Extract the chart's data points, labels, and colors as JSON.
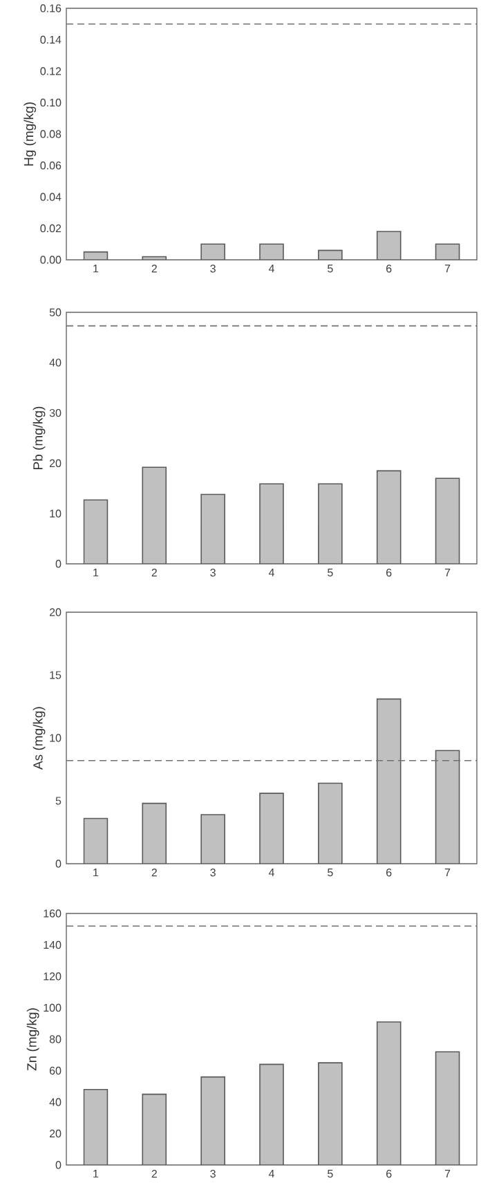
{
  "chart_data": [
    {
      "type": "bar",
      "ylabel": "Hg (mg/kg)",
      "categories": [
        "1",
        "2",
        "3",
        "4",
        "5",
        "6",
        "7"
      ],
      "values": [
        0.005,
        0.002,
        0.01,
        0.01,
        0.006,
        0.018,
        0.01
      ],
      "color": "#c0c0c0",
      "ylim": [
        0,
        0.16
      ],
      "yticks": [
        {
          "value": 0,
          "label": "0.00"
        },
        {
          "value": 0.02,
          "label": "0.02"
        },
        {
          "value": 0.04,
          "label": "0.04"
        },
        {
          "value": 0.06,
          "label": "0.06"
        },
        {
          "value": 0.08,
          "label": "0.08"
        },
        {
          "value": 0.1,
          "label": "0.10"
        },
        {
          "value": 0.12,
          "label": "0.12"
        },
        {
          "value": 0.14,
          "label": "0.14"
        },
        {
          "value": 0.16,
          "label": "0.16"
        }
      ],
      "ref_lines": [
        {
          "axis": "y",
          "value": 0.15,
          "color": "#707070",
          "line_style": "dashed"
        }
      ]
    },
    {
      "type": "bar",
      "ylabel": "Pb (mg/kg)",
      "categories": [
        "1",
        "2",
        "3",
        "4",
        "5",
        "6",
        "7"
      ],
      "values": [
        12.7,
        19.2,
        13.8,
        15.9,
        15.9,
        18.5,
        17.0
      ],
      "color": "#c0c0c0",
      "ylim": [
        0,
        50
      ],
      "yticks": [
        0,
        10,
        20,
        30,
        40,
        50
      ],
      "ref_lines": [
        {
          "axis": "y",
          "value": 47.3,
          "color": "#707070",
          "line_style": "dashed"
        }
      ]
    },
    {
      "type": "bar",
      "ylabel": "As (mg/kg)",
      "categories": [
        "1",
        "2",
        "3",
        "4",
        "5",
        "6",
        "7"
      ],
      "values": [
        3.6,
        4.8,
        3.9,
        5.6,
        6.4,
        13.1,
        9.0
      ],
      "color": "#c0c0c0",
      "ylim": [
        0,
        20
      ],
      "yticks": [
        0,
        5,
        10,
        15,
        20
      ],
      "ref_lines": [
        {
          "axis": "y",
          "value": 8.2,
          "color": "#707070",
          "line_style": "dashed"
        }
      ]
    },
    {
      "type": "bar",
      "ylabel": "Zn (mg/kg)",
      "categories": [
        "1",
        "2",
        "3",
        "4",
        "5",
        "6",
        "7"
      ],
      "values": [
        48,
        45,
        56,
        64,
        65,
        91,
        72
      ],
      "color": "#c0c0c0",
      "ylim": [
        0,
        160
      ],
      "yticks": [
        0,
        20,
        40,
        60,
        80,
        100,
        120,
        140,
        160
      ],
      "ref_lines": [
        {
          "axis": "y",
          "value": 152,
          "color": "#707070",
          "line_style": "dashed"
        }
      ]
    }
  ]
}
